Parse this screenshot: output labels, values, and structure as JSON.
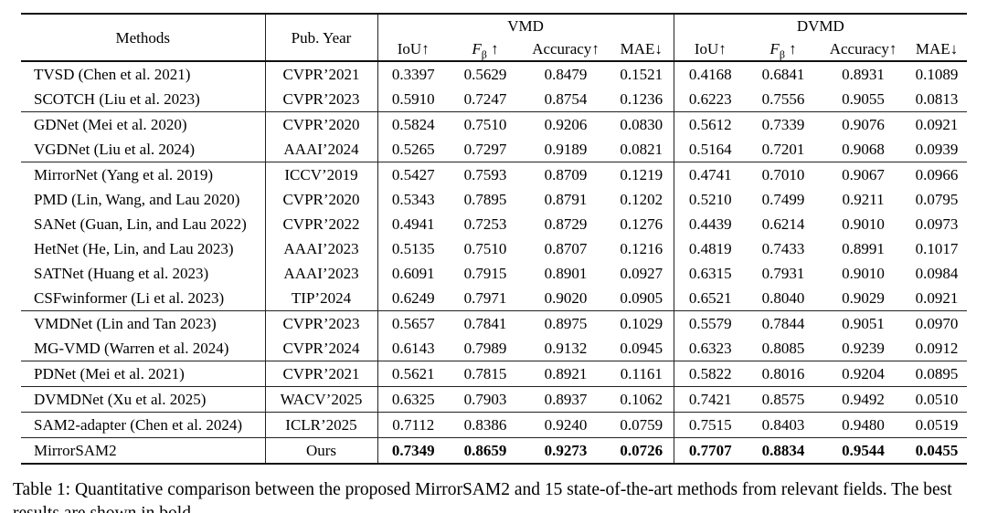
{
  "caption": {
    "text": "Table 1: Quantitative comparison between the proposed MirrorSAM2 and 15 state-of-the-art methods from relevant fields. The best results are shown in bold."
  },
  "table": {
    "headers": {
      "methods": "Methods",
      "pub_year": "Pub. Year",
      "group_vmd": "VMD",
      "group_dvmd": "DVMD",
      "metrics": [
        {
          "name": "iou",
          "label": "IoU",
          "sub": "",
          "italic": false,
          "space": false,
          "arrow": "↑"
        },
        {
          "name": "f-beta",
          "label": "F",
          "sub": "β",
          "italic": true,
          "space": true,
          "arrow": "↑"
        },
        {
          "name": "accuracy",
          "label": "Accuracy",
          "sub": "",
          "italic": false,
          "space": false,
          "arrow": "↑"
        },
        {
          "name": "mae",
          "label": "MAE",
          "sub": "",
          "italic": false,
          "space": false,
          "arrow": "↓"
        }
      ]
    },
    "groups": [
      {
        "rows": [
          {
            "method": "TVSD (Chen et al. 2021)",
            "pub": "CVPR’2021",
            "vmd": [
              "0.3397",
              "0.5629",
              "0.8479",
              "0.1521"
            ],
            "dvmd": [
              "0.4168",
              "0.6841",
              "0.8931",
              "0.1089"
            ],
            "bold": false
          },
          {
            "method": "SCOTCH (Liu et al. 2023)",
            "pub": "CVPR’2023",
            "vmd": [
              "0.5910",
              "0.7247",
              "0.8754",
              "0.1236"
            ],
            "dvmd": [
              "0.6223",
              "0.7556",
              "0.9055",
              "0.0813"
            ],
            "bold": false
          }
        ]
      },
      {
        "rows": [
          {
            "method": "GDNet (Mei et al. 2020)",
            "pub": "CVPR’2020",
            "vmd": [
              "0.5824",
              "0.7510",
              "0.9206",
              "0.0830"
            ],
            "dvmd": [
              "0.5612",
              "0.7339",
              "0.9076",
              "0.0921"
            ],
            "bold": false
          },
          {
            "method": "VGDNet (Liu et al. 2024)",
            "pub": "AAAI’2024",
            "vmd": [
              "0.5265",
              "0.7297",
              "0.9189",
              "0.0821"
            ],
            "dvmd": [
              "0.5164",
              "0.7201",
              "0.9068",
              "0.0939"
            ],
            "bold": false
          }
        ]
      },
      {
        "rows": [
          {
            "method": "MirrorNet (Yang et al. 2019)",
            "pub": "ICCV’2019",
            "vmd": [
              "0.5427",
              "0.7593",
              "0.8709",
              "0.1219"
            ],
            "dvmd": [
              "0.4741",
              "0.7010",
              "0.9067",
              "0.0966"
            ],
            "bold": false
          },
          {
            "method": "PMD (Lin, Wang, and Lau 2020)",
            "pub": "CVPR’2020",
            "vmd": [
              "0.5343",
              "0.7895",
              "0.8791",
              "0.1202"
            ],
            "dvmd": [
              "0.5210",
              "0.7499",
              "0.9211",
              "0.0795"
            ],
            "bold": false
          },
          {
            "method": "SANet (Guan, Lin, and Lau 2022)",
            "pub": "CVPR’2022",
            "vmd": [
              "0.4941",
              "0.7253",
              "0.8729",
              "0.1276"
            ],
            "dvmd": [
              "0.4439",
              "0.6214",
              "0.9010",
              "0.0973"
            ],
            "bold": false
          },
          {
            "method": "HetNet (He, Lin, and Lau 2023)",
            "pub": "AAAI’2023",
            "vmd": [
              "0.5135",
              "0.7510",
              "0.8707",
              "0.1216"
            ],
            "dvmd": [
              "0.4819",
              "0.7433",
              "0.8991",
              "0.1017"
            ],
            "bold": false
          },
          {
            "method": "SATNet (Huang et al. 2023)",
            "pub": "AAAI’2023",
            "vmd": [
              "0.6091",
              "0.7915",
              "0.8901",
              "0.0927"
            ],
            "dvmd": [
              "0.6315",
              "0.7931",
              "0.9010",
              "0.0984"
            ],
            "bold": false
          },
          {
            "method": "CSFwinformer (Li et al. 2023)",
            "pub": "TIP’2024",
            "vmd": [
              "0.6249",
              "0.7971",
              "0.9020",
              "0.0905"
            ],
            "dvmd": [
              "0.6521",
              "0.8040",
              "0.9029",
              "0.0921"
            ],
            "bold": false
          }
        ]
      },
      {
        "rows": [
          {
            "method": "VMDNet (Lin and Tan 2023)",
            "pub": "CVPR’2023",
            "vmd": [
              "0.5657",
              "0.7841",
              "0.8975",
              "0.1029"
            ],
            "dvmd": [
              "0.5579",
              "0.7844",
              "0.9051",
              "0.0970"
            ],
            "bold": false
          },
          {
            "method": "MG-VMD (Warren et al. 2024)",
            "pub": "CVPR’2024",
            "vmd": [
              "0.6143",
              "0.7989",
              "0.9132",
              "0.0945"
            ],
            "dvmd": [
              "0.6323",
              "0.8085",
              "0.9239",
              "0.0912"
            ],
            "bold": false
          }
        ]
      },
      {
        "rows": [
          {
            "method": "PDNet (Mei et al. 2021)",
            "pub": "CVPR’2021",
            "vmd": [
              "0.5621",
              "0.7815",
              "0.8921",
              "0.1161"
            ],
            "dvmd": [
              "0.5822",
              "0.8016",
              "0.9204",
              "0.0895"
            ],
            "bold": false
          }
        ]
      },
      {
        "rows": [
          {
            "method": "DVMDNet (Xu et al. 2025)",
            "pub": "WACV’2025",
            "vmd": [
              "0.6325",
              "0.7903",
              "0.8937",
              "0.1062"
            ],
            "dvmd": [
              "0.7421",
              "0.8575",
              "0.9492",
              "0.0510"
            ],
            "bold": false
          }
        ]
      },
      {
        "rows": [
          {
            "method": "SAM2-adapter (Chen et al. 2024)",
            "pub": "ICLR’2025",
            "vmd": [
              "0.7112",
              "0.8386",
              "0.9240",
              "0.0759"
            ],
            "dvmd": [
              "0.7515",
              "0.8403",
              "0.9480",
              "0.0519"
            ],
            "bold": false
          }
        ]
      },
      {
        "rows": [
          {
            "method": "MirrorSAM2",
            "pub": "Ours",
            "vmd": [
              "0.7349",
              "0.8659",
              "0.9273",
              "0.0726"
            ],
            "dvmd": [
              "0.7707",
              "0.8834",
              "0.9544",
              "0.0455"
            ],
            "bold": true
          }
        ]
      }
    ]
  }
}
